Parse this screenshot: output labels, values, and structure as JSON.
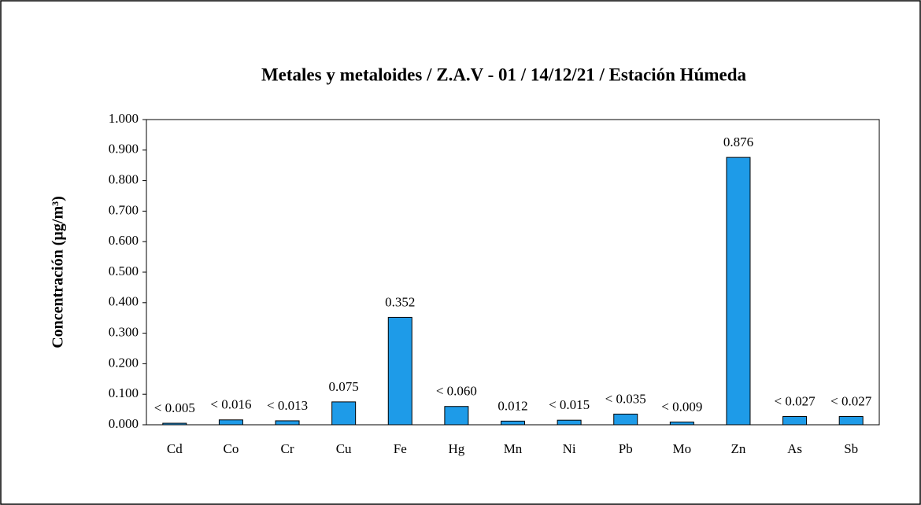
{
  "chart_data": {
    "type": "bar",
    "title": "Metales y metaloides / Z.A.V  - 01 / 14/12/21 / Estación Húmeda",
    "y_label": "Concentración (µg/m³)",
    "categories": [
      "Cd",
      "Co",
      "Cr",
      "Cu",
      "Fe",
      "Hg",
      "Mn",
      "Ni",
      "Pb",
      "Mo",
      "Zn",
      "As",
      "Sb"
    ],
    "values": [
      0.005,
      0.016,
      0.013,
      0.075,
      0.352,
      0.06,
      0.012,
      0.015,
      0.035,
      0.009,
      0.876,
      0.027,
      0.027
    ],
    "value_labels": [
      "< 0.005",
      "< 0.016",
      "< 0.013",
      "0.075",
      "0.352",
      "< 0.060",
      "0.012",
      "< 0.015",
      "< 0.035",
      "< 0.009",
      "0.876",
      "< 0.027",
      "< 0.027"
    ],
    "color": "#1e9be8",
    "ylim": [
      0,
      1
    ],
    "yticks": [
      {
        "value": 0,
        "label": "0.000"
      },
      {
        "value": 0.1,
        "label": "0.100"
      },
      {
        "value": 0.2,
        "label": "0.200"
      },
      {
        "value": 0.3,
        "label": "0.300"
      },
      {
        "value": 0.4,
        "label": "0.400"
      },
      {
        "value": 0.5,
        "label": "0.500"
      },
      {
        "value": 0.6,
        "label": "0.600"
      },
      {
        "value": 0.7,
        "label": "0.700"
      },
      {
        "value": 0.8,
        "label": "0.800"
      },
      {
        "value": 0.9,
        "label": "0.900"
      },
      {
        "value": 1,
        "label": "1.000"
      }
    ],
    "grid": false
  }
}
